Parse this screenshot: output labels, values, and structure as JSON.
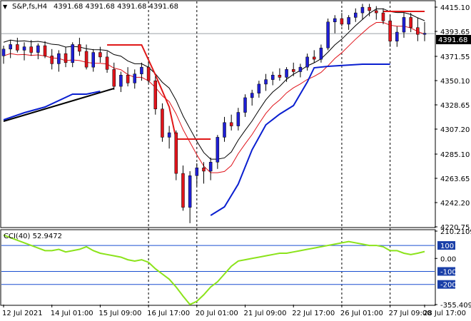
{
  "header": {
    "symbol": "S&P,fs,H4",
    "ohlc": "4391.68 4391.68 4391.68 4391.68"
  },
  "current_price": "4391.68",
  "cci_label": "CCI(40) 52.9472",
  "colors": {
    "bull": "#1f1fd6",
    "bear": "#e0141b",
    "ma_fast": "#000000",
    "ma_slow": "#e0141b",
    "sar_bull": "#0a1fd0",
    "sar_bear": "#e01818",
    "cci": "#8be31a",
    "trendline": "#000000",
    "level_line": "#1a4fd0"
  },
  "chart_data": [
    {
      "type": "candlestick",
      "title": "S&P,fs,H4",
      "y_ticks": [
        "4415.10",
        "4393.65",
        "4371.55",
        "4350.10",
        "4328.65",
        "4307.20",
        "4285.10",
        "4263.65",
        "4242.20",
        "4220.75"
      ],
      "ylim": [
        4220.75,
        4415.1
      ],
      "x_ticks": [
        "12 Jul 2021",
        "14 Jul 01:00",
        "15 Jul 09:00",
        "16 Jul 17:00",
        "20 Jul 01:00",
        "21 Jul 09:00",
        "22 Jul 17:00",
        "26 Jul 01:00",
        "27 Jul 09:00",
        "28 Jul 17:00"
      ],
      "series": [
        {
          "values": [
            [
              4372,
              4381,
              4365,
              4378
            ],
            [
              4378,
              4386,
              4370,
              4382
            ],
            [
              4382,
              4388,
              4375,
              4377
            ],
            [
              4377,
              4384,
              4368,
              4380
            ],
            [
              4380,
              4386,
              4372,
              4375
            ],
            [
              4375,
              4383,
              4369,
              4381
            ],
            [
              4381,
              4385,
              4370,
              4372
            ],
            [
              4372,
              4378,
              4360,
              4365
            ],
            [
              4365,
              4377,
              4358,
              4374
            ],
            [
              4374,
              4380,
              4362,
              4366
            ],
            [
              4366,
              4384,
              4362,
              4382
            ],
            [
              4382,
              4388,
              4372,
              4376
            ],
            [
              4376,
              4382,
              4360,
              4362
            ],
            [
              4362,
              4378,
              4358,
              4375
            ],
            [
              4375,
              4380,
              4366,
              4371
            ],
            [
              4371,
              4376,
              4357,
              4360
            ],
            [
              4360,
              4366,
              4342,
              4345
            ],
            [
              4345,
              4358,
              4340,
              4355
            ],
            [
              4355,
              4362,
              4345,
              4348
            ],
            [
              4348,
              4360,
              4343,
              4356
            ],
            [
              4356,
              4366,
              4350,
              4362
            ],
            [
              4362,
              4367,
              4348,
              4350
            ],
            [
              4350,
              4354,
              4320,
              4325
            ],
            [
              4325,
              4330,
              4296,
              4300
            ],
            [
              4300,
              4310,
              4290,
              4304
            ],
            [
              4304,
              4306,
              4262,
              4268
            ],
            [
              4268,
              4275,
              4235,
              4238
            ],
            [
              4238,
              4270,
              4224,
              4266
            ],
            [
              4266,
              4277,
              4257,
              4273
            ],
            [
              4273,
              4278,
              4259,
              4270
            ],
            [
              4270,
              4282,
              4262,
              4278
            ],
            [
              4278,
              4302,
              4272,
              4300
            ],
            [
              4300,
              4318,
              4296,
              4313
            ],
            [
              4313,
              4320,
              4306,
              4310
            ],
            [
              4310,
              4326,
              4306,
              4322
            ],
            [
              4322,
              4338,
              4318,
              4335
            ],
            [
              4335,
              4342,
              4328,
              4339
            ],
            [
              4339,
              4350,
              4335,
              4347
            ],
            [
              4347,
              4356,
              4341,
              4351
            ],
            [
              4351,
              4358,
              4346,
              4355
            ],
            [
              4355,
              4361,
              4350,
              4353
            ],
            [
              4353,
              4362,
              4349,
              4360
            ],
            [
              4360,
              4366,
              4354,
              4358
            ],
            [
              4358,
              4365,
              4353,
              4362
            ],
            [
              4362,
              4374,
              4359,
              4371
            ],
            [
              4371,
              4377,
              4366,
              4369
            ],
            [
              4369,
              4382,
              4366,
              4379
            ],
            [
              4379,
              4405,
              4377,
              4402
            ],
            [
              4402,
              4408,
              4392,
              4405
            ],
            [
              4405,
              4410,
              4398,
              4400
            ],
            [
              4400,
              4408,
              4395,
              4406
            ],
            [
              4406,
              4414,
              4402,
              4410
            ],
            [
              4410,
              4418,
              4404,
              4415
            ],
            [
              4415,
              4418,
              4407,
              4412
            ],
            [
              4412,
              4416,
              4404,
              4410
            ],
            [
              4410,
              4414,
              4400,
              4403
            ],
            [
              4403,
              4408,
              4380,
              4385
            ],
            [
              4385,
              4398,
              4380,
              4393
            ],
            [
              4393,
              4410,
              4388,
              4406
            ],
            [
              4406,
              4410,
              4393,
              4397
            ],
            [
              4397,
              4406,
              4385,
              4391
            ],
            [
              4391,
              4402,
              4385,
              4392
            ]
          ]
        }
      ]
    },
    {
      "type": "line",
      "title": "CCI(40) 52.9472",
      "y_ticks": [
        "210.2109",
        "100",
        "0.00",
        "-100",
        "-200",
        "-355.409"
      ],
      "ylim": [
        -355.409,
        210.2109
      ],
      "levels": [
        100,
        -100,
        -200
      ],
      "series": [
        {
          "values": [
            180,
            160,
            140,
            120,
            100,
            80,
            60,
            60,
            70,
            50,
            60,
            70,
            90,
            60,
            40,
            30,
            20,
            10,
            -10,
            -20,
            -10,
            -30,
            -80,
            -120,
            -160,
            -220,
            -290,
            -355,
            -330,
            -280,
            -220,
            -180,
            -120,
            -60,
            -20,
            -10,
            0,
            10,
            20,
            30,
            40,
            40,
            50,
            60,
            70,
            80,
            90,
            100,
            110,
            120,
            130,
            120,
            110,
            100,
            100,
            90,
            60,
            60,
            40,
            30,
            40,
            52.9472
          ]
        }
      ]
    }
  ]
}
